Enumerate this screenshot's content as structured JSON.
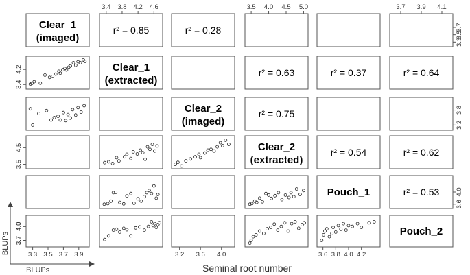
{
  "chart_data": {
    "type": "scatter",
    "title": "",
    "xlabel": "Seminal root number",
    "corner_labels": {
      "x": "BLUPs",
      "y": "BLUPs"
    },
    "variables": [
      {
        "name": "Clear_1\n(imaged)",
        "range": [
          3.25,
          4.0
        ],
        "ticks": [
          "3.3",
          "3.5",
          "3.7",
          "3.9"
        ],
        "tick_side": "bottom"
      },
      {
        "name": "Clear_1\n(extracted)",
        "range": [
          3.3,
          4.75
        ],
        "ticks": [
          "3.4",
          "3.8",
          "4.2",
          "4.6"
        ],
        "tick_side": "top",
        "yticks": [
          "3.4",
          "4.2"
        ]
      },
      {
        "name": "Clear_2\n(imaged)",
        "range": [
          3.1,
          4.2
        ],
        "ticks": [
          "3.2",
          "3.6",
          "4.0"
        ],
        "tick_side": "bottom",
        "yticks": [
          "3.2",
          "3.8"
        ]
      },
      {
        "name": "Clear_2\n(extracted)",
        "range": [
          3.4,
          5.05
        ],
        "ticks": [
          "3.5",
          "4.0",
          "4.5",
          "5.0"
        ],
        "tick_side": "top",
        "yticks": [
          "3.5",
          "4.5"
        ]
      },
      {
        "name": "Pouch_1",
        "range": [
          3.55,
          4.45
        ],
        "ticks": [
          "3.6",
          "3.8",
          "4.0",
          "4.2"
        ],
        "tick_side": "bottom",
        "yticks": [
          "3.6",
          "4.0"
        ]
      },
      {
        "name": "Pouch_2",
        "range": [
          3.62,
          4.18
        ],
        "ticks": [
          "3.7",
          "3.9",
          "4.1"
        ],
        "tick_side": "top",
        "yticks": [
          "3.7",
          "4.0"
        ]
      }
    ],
    "r2": [
      {
        "row": 0,
        "col": 1,
        "label": "r² = 0.85",
        "value": 0.85
      },
      {
        "row": 0,
        "col": 2,
        "label": "r² = 0.28",
        "value": 0.28
      },
      {
        "row": 1,
        "col": 3,
        "label": "r² = 0.63",
        "value": 0.63
      },
      {
        "row": 1,
        "col": 4,
        "label": "r² = 0.37",
        "value": 0.37
      },
      {
        "row": 1,
        "col": 5,
        "label": "r² = 0.64",
        "value": 0.64
      },
      {
        "row": 2,
        "col": 3,
        "label": "r² = 0.75",
        "value": 0.75
      },
      {
        "row": 3,
        "col": 4,
        "label": "r² = 0.54",
        "value": 0.54
      },
      {
        "row": 3,
        "col": 5,
        "label": "r² = 0.62",
        "value": 0.62
      },
      {
        "row": 4,
        "col": 5,
        "label": "r² = 0.53",
        "value": 0.53
      }
    ],
    "scatter_panels": [
      {
        "row": 1,
        "col": 0,
        "x_var": 0,
        "y_var": 1,
        "points": [
          [
            3.27,
            3.42
          ],
          [
            3.29,
            3.46
          ],
          [
            3.32,
            3.55
          ],
          [
            3.4,
            3.47
          ],
          [
            3.46,
            3.9
          ],
          [
            3.52,
            3.78
          ],
          [
            3.56,
            3.83
          ],
          [
            3.6,
            3.95
          ],
          [
            3.64,
            4.1
          ],
          [
            3.66,
            4.0
          ],
          [
            3.69,
            4.18
          ],
          [
            3.72,
            4.25
          ],
          [
            3.74,
            4.17
          ],
          [
            3.77,
            4.32
          ],
          [
            3.79,
            4.38
          ],
          [
            3.83,
            4.55
          ],
          [
            3.86,
            4.42
          ],
          [
            3.89,
            4.6
          ],
          [
            3.92,
            4.55
          ],
          [
            3.96,
            4.7
          ],
          [
            3.98,
            4.62
          ]
        ]
      },
      {
        "row": 2,
        "col": 0,
        "x_var": 0,
        "y_var": 2,
        "points": [
          [
            3.27,
            3.85
          ],
          [
            3.3,
            3.2
          ],
          [
            3.38,
            3.66
          ],
          [
            3.48,
            3.78
          ],
          [
            3.54,
            3.4
          ],
          [
            3.58,
            3.5
          ],
          [
            3.63,
            3.55
          ],
          [
            3.66,
            3.4
          ],
          [
            3.7,
            3.7
          ],
          [
            3.73,
            3.38
          ],
          [
            3.76,
            3.62
          ],
          [
            3.79,
            3.48
          ],
          [
            3.82,
            3.82
          ],
          [
            3.86,
            3.6
          ],
          [
            3.89,
            3.9
          ],
          [
            3.93,
            3.72
          ],
          [
            3.97,
            3.98
          ]
        ]
      },
      {
        "row": 3,
        "col": 1,
        "x_var": 1,
        "y_var": 3,
        "points": [
          [
            3.36,
            3.6
          ],
          [
            3.46,
            3.65
          ],
          [
            3.56,
            3.55
          ],
          [
            3.66,
            3.9
          ],
          [
            3.72,
            3.7
          ],
          [
            3.86,
            3.95
          ],
          [
            3.92,
            4.1
          ],
          [
            4.02,
            3.85
          ],
          [
            4.08,
            4.25
          ],
          [
            4.18,
            4.12
          ],
          [
            4.26,
            4.35
          ],
          [
            4.32,
            4.2
          ],
          [
            4.38,
            3.8
          ],
          [
            4.44,
            4.55
          ],
          [
            4.5,
            4.4
          ],
          [
            4.56,
            4.7
          ],
          [
            4.62,
            4.3
          ],
          [
            4.68,
            4.6
          ]
        ]
      },
      {
        "row": 3,
        "col": 2,
        "x_var": 2,
        "y_var": 3,
        "points": [
          [
            3.12,
            3.5
          ],
          [
            3.17,
            3.62
          ],
          [
            3.24,
            3.4
          ],
          [
            3.32,
            3.7
          ],
          [
            3.41,
            3.82
          ],
          [
            3.5,
            3.95
          ],
          [
            3.57,
            4.1
          ],
          [
            3.6,
            3.9
          ],
          [
            3.68,
            4.18
          ],
          [
            3.74,
            4.35
          ],
          [
            3.8,
            4.4
          ],
          [
            3.86,
            4.3
          ],
          [
            3.92,
            4.55
          ],
          [
            3.98,
            4.8
          ],
          [
            4.02,
            4.62
          ],
          [
            4.08,
            4.95
          ],
          [
            4.14,
            4.7
          ]
        ]
      },
      {
        "row": 4,
        "col": 1,
        "x_var": 1,
        "y_var": 4,
        "points": [
          [
            3.35,
            3.6
          ],
          [
            3.44,
            3.62
          ],
          [
            3.52,
            3.7
          ],
          [
            3.58,
            3.98
          ],
          [
            3.64,
            3.99
          ],
          [
            3.74,
            3.66
          ],
          [
            3.84,
            3.61
          ],
          [
            3.92,
            3.87
          ],
          [
            4.02,
            3.95
          ],
          [
            4.1,
            3.63
          ],
          [
            4.2,
            3.78
          ],
          [
            4.28,
            3.7
          ],
          [
            4.36,
            3.85
          ],
          [
            4.42,
            3.98
          ],
          [
            4.48,
            4.05
          ],
          [
            4.54,
            3.95
          ],
          [
            4.6,
            4.2
          ],
          [
            4.66,
            3.8
          ],
          [
            4.7,
            3.92
          ]
        ]
      },
      {
        "row": 4,
        "col": 3,
        "x_var": 3,
        "y_var": 4,
        "points": [
          [
            3.46,
            3.6
          ],
          [
            3.52,
            3.62
          ],
          [
            3.6,
            3.7
          ],
          [
            3.66,
            3.66
          ],
          [
            3.74,
            3.8
          ],
          [
            3.82,
            3.68
          ],
          [
            3.92,
            3.95
          ],
          [
            4.0,
            3.9
          ],
          [
            4.08,
            3.79
          ],
          [
            4.18,
            3.88
          ],
          [
            4.28,
            3.98
          ],
          [
            4.38,
            3.75
          ],
          [
            4.48,
            3.9
          ],
          [
            4.58,
            3.82
          ],
          [
            4.64,
            3.98
          ],
          [
            4.72,
            3.85
          ],
          [
            4.8,
            4.1
          ],
          [
            4.9,
            3.92
          ],
          [
            5.0,
            4.05
          ]
        ]
      },
      {
        "row": 5,
        "col": 1,
        "x_var": 1,
        "y_var": 5,
        "points": [
          [
            3.36,
            3.72
          ],
          [
            3.46,
            3.8
          ],
          [
            3.58,
            3.92
          ],
          [
            3.66,
            3.94
          ],
          [
            3.74,
            3.88
          ],
          [
            3.84,
            3.96
          ],
          [
            3.92,
            3.93
          ],
          [
            4.02,
            3.8
          ],
          [
            4.14,
            3.97
          ],
          [
            4.24,
            3.99
          ],
          [
            4.36,
            3.92
          ],
          [
            4.46,
            4.0
          ],
          [
            4.54,
            4.1
          ],
          [
            4.58,
            4.02
          ],
          [
            4.62,
            4.06
          ],
          [
            4.66,
            3.98
          ],
          [
            4.7,
            4.04
          ],
          [
            4.74,
            4.08
          ]
        ]
      },
      {
        "row": 5,
        "col": 3,
        "x_var": 3,
        "y_var": 5,
        "points": [
          [
            3.46,
            3.64
          ],
          [
            3.5,
            3.7
          ],
          [
            3.56,
            3.78
          ],
          [
            3.64,
            3.82
          ],
          [
            3.74,
            3.9
          ],
          [
            3.86,
            3.85
          ],
          [
            3.96,
            3.95
          ],
          [
            4.06,
            3.98
          ],
          [
            4.16,
            4.05
          ],
          [
            4.26,
            3.92
          ],
          [
            4.36,
            4.0
          ],
          [
            4.46,
            4.08
          ],
          [
            4.56,
            3.9
          ],
          [
            4.66,
            4.06
          ],
          [
            4.76,
            4.1
          ],
          [
            4.86,
            3.96
          ],
          [
            4.96,
            4.04
          ],
          [
            5.02,
            4.08
          ]
        ]
      },
      {
        "row": 5,
        "col": 4,
        "x_var": 4,
        "y_var": 5,
        "points": [
          [
            3.58,
            3.7
          ],
          [
            3.61,
            3.82
          ],
          [
            3.63,
            3.9
          ],
          [
            3.66,
            3.95
          ],
          [
            3.7,
            3.78
          ],
          [
            3.74,
            3.85
          ],
          [
            3.76,
            3.98
          ],
          [
            3.8,
            3.88
          ],
          [
            3.84,
            4.02
          ],
          [
            3.88,
            3.94
          ],
          [
            3.92,
            4.06
          ],
          [
            3.96,
            3.92
          ],
          [
            4.0,
            4.02
          ],
          [
            4.06,
            4.0
          ],
          [
            4.14,
            4.06
          ],
          [
            4.2,
            3.98
          ],
          [
            4.32,
            4.08
          ],
          [
            4.4,
            4.1
          ]
        ]
      }
    ]
  }
}
